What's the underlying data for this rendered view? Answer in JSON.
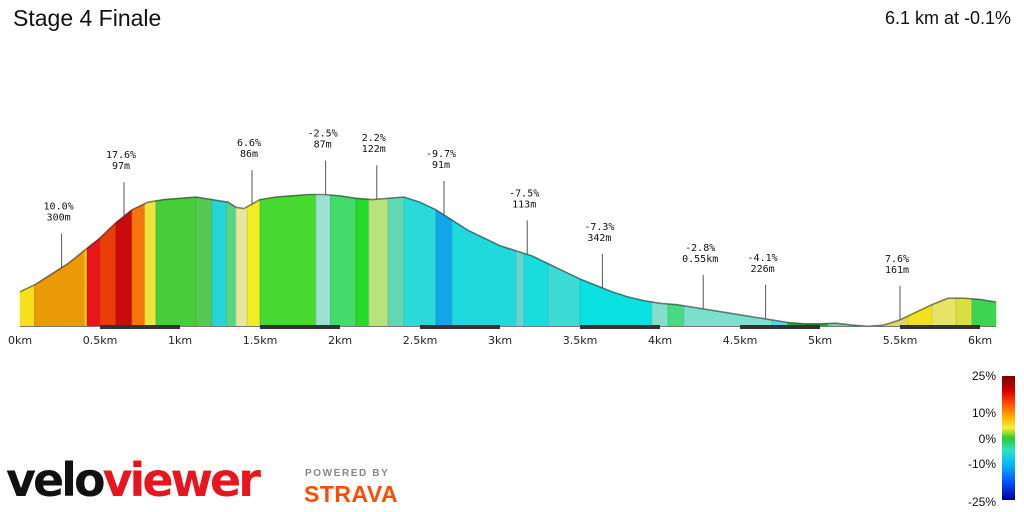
{
  "header": {
    "title": "Stage 4 Finale",
    "summary": "6.1 km at -0.1%"
  },
  "chart_data": {
    "type": "area",
    "title": "Stage 4 Finale",
    "distance_unit": "km",
    "x_ticks": [
      "0km",
      "0.5km",
      "1km",
      "1.5km",
      "2km",
      "2.5km",
      "3km",
      "3.5km",
      "4km",
      "4.5km",
      "5km",
      "5.5km",
      "6km"
    ],
    "x_tick_values": [
      0,
      0.5,
      1,
      1.5,
      2,
      2.5,
      3,
      3.5,
      4,
      4.5,
      5,
      5.5,
      6
    ],
    "xlim": [
      0,
      6.1
    ],
    "profile": [
      [
        0.0,
        4
      ],
      [
        0.1,
        7
      ],
      [
        0.2,
        11
      ],
      [
        0.3,
        15
      ],
      [
        0.4,
        20
      ],
      [
        0.5,
        25
      ],
      [
        0.6,
        31
      ],
      [
        0.7,
        36
      ],
      [
        0.8,
        39
      ],
      [
        0.9,
        40
      ],
      [
        1.0,
        40.5
      ],
      [
        1.1,
        41
      ],
      [
        1.2,
        40
      ],
      [
        1.3,
        39
      ],
      [
        1.35,
        37
      ],
      [
        1.4,
        36.5
      ],
      [
        1.5,
        40
      ],
      [
        1.6,
        41
      ],
      [
        1.7,
        41.5
      ],
      [
        1.8,
        42
      ],
      [
        1.9,
        42
      ],
      [
        2.0,
        41.5
      ],
      [
        2.1,
        40.5
      ],
      [
        2.2,
        40
      ],
      [
        2.3,
        40.5
      ],
      [
        2.4,
        41
      ],
      [
        2.5,
        39
      ],
      [
        2.6,
        36
      ],
      [
        2.7,
        32
      ],
      [
        2.8,
        28
      ],
      [
        2.9,
        25
      ],
      [
        3.0,
        22
      ],
      [
        3.1,
        20
      ],
      [
        3.2,
        18
      ],
      [
        3.3,
        15
      ],
      [
        3.4,
        12
      ],
      [
        3.5,
        9
      ],
      [
        3.6,
        6.5
      ],
      [
        3.7,
        4
      ],
      [
        3.8,
        2
      ],
      [
        3.9,
        0.5
      ],
      [
        4.0,
        -0.5
      ],
      [
        4.1,
        -1
      ],
      [
        4.2,
        -2
      ],
      [
        4.3,
        -3
      ],
      [
        4.4,
        -4
      ],
      [
        4.5,
        -5
      ],
      [
        4.6,
        -6
      ],
      [
        4.7,
        -7
      ],
      [
        4.8,
        -8
      ],
      [
        4.9,
        -8.5
      ],
      [
        5.0,
        -8.5
      ],
      [
        5.1,
        -8.3
      ],
      [
        5.2,
        -9
      ],
      [
        5.3,
        -9.5
      ],
      [
        5.4,
        -9
      ],
      [
        5.5,
        -7
      ],
      [
        5.6,
        -4
      ],
      [
        5.7,
        -1
      ],
      [
        5.8,
        1.5
      ],
      [
        5.9,
        1.5
      ],
      [
        6.0,
        1
      ],
      [
        6.1,
        0
      ]
    ],
    "segment_colors": [
      [
        0.0,
        "#f4e11c"
      ],
      [
        0.09,
        "#eb9a07"
      ],
      [
        0.4,
        "#f3c21a"
      ],
      [
        0.42,
        "#e8151a"
      ],
      [
        0.5,
        "#ea3d0a"
      ],
      [
        0.6,
        "#c90b0b"
      ],
      [
        0.7,
        "#f5760c"
      ],
      [
        0.78,
        "#ede43c"
      ],
      [
        0.85,
        "#47cc3a"
      ],
      [
        1.1,
        "#56c854"
      ],
      [
        1.2,
        "#27d5d9"
      ],
      [
        1.29,
        "#57d585"
      ],
      [
        1.35,
        "#e6e6a0"
      ],
      [
        1.42,
        "#f2ec26"
      ],
      [
        1.5,
        "#48d931"
      ],
      [
        1.85,
        "#9be0d2"
      ],
      [
        1.94,
        "#44db6c"
      ],
      [
        2.1,
        "#27d92a"
      ],
      [
        2.18,
        "#b8e27b"
      ],
      [
        2.3,
        "#61d8b2"
      ],
      [
        2.4,
        "#2bdad8"
      ],
      [
        2.6,
        "#11a6e8"
      ],
      [
        2.7,
        "#21d8dc"
      ],
      [
        3.1,
        "#66d6cc"
      ],
      [
        3.15,
        "#19dcdf"
      ],
      [
        3.3,
        "#3ddbd5"
      ],
      [
        3.5,
        "#09e0e0"
      ],
      [
        3.95,
        "#83dfcb"
      ],
      [
        4.05,
        "#47d984"
      ],
      [
        4.15,
        "#7ddfce"
      ],
      [
        4.7,
        "#55d7e7"
      ],
      [
        4.8,
        "#21b321"
      ],
      [
        5.05,
        "#6fd39f"
      ],
      [
        5.25,
        "#c8d7ad"
      ],
      [
        5.4,
        "#e0d56b"
      ],
      [
        5.55,
        "#f2e21e"
      ],
      [
        5.7,
        "#e7e365"
      ],
      [
        5.85,
        "#d8e040"
      ],
      [
        5.95,
        "#3fd352"
      ]
    ],
    "annotations": [
      {
        "x": 0.26,
        "grade": "10.0%",
        "dist": "300m"
      },
      {
        "x": 0.65,
        "grade": "17.6%",
        "dist": "97m"
      },
      {
        "x": 1.45,
        "grade": "6.6%",
        "dist": "86m"
      },
      {
        "x": 1.91,
        "grade": "-2.5%",
        "dist": "87m"
      },
      {
        "x": 2.23,
        "grade": "2.2%",
        "dist": "122m"
      },
      {
        "x": 2.65,
        "grade": "-9.7%",
        "dist": "91m"
      },
      {
        "x": 3.17,
        "grade": "-7.5%",
        "dist": "113m"
      },
      {
        "x": 3.64,
        "grade": "-7.3%",
        "dist": "342m"
      },
      {
        "x": 4.27,
        "grade": "-2.8%",
        "dist": "0.55km"
      },
      {
        "x": 4.66,
        "grade": "-4.1%",
        "dist": "226m"
      },
      {
        "x": 5.5,
        "grade": "7.6%",
        "dist": "161m"
      }
    ],
    "legend": {
      "labels": [
        "25%",
        "10%",
        "0%",
        "-10%",
        "-25%"
      ]
    }
  },
  "branding": {
    "velo": "velo",
    "viewer": "viewer",
    "powered_by": "POWERED BY",
    "strava": "STRAVA"
  }
}
